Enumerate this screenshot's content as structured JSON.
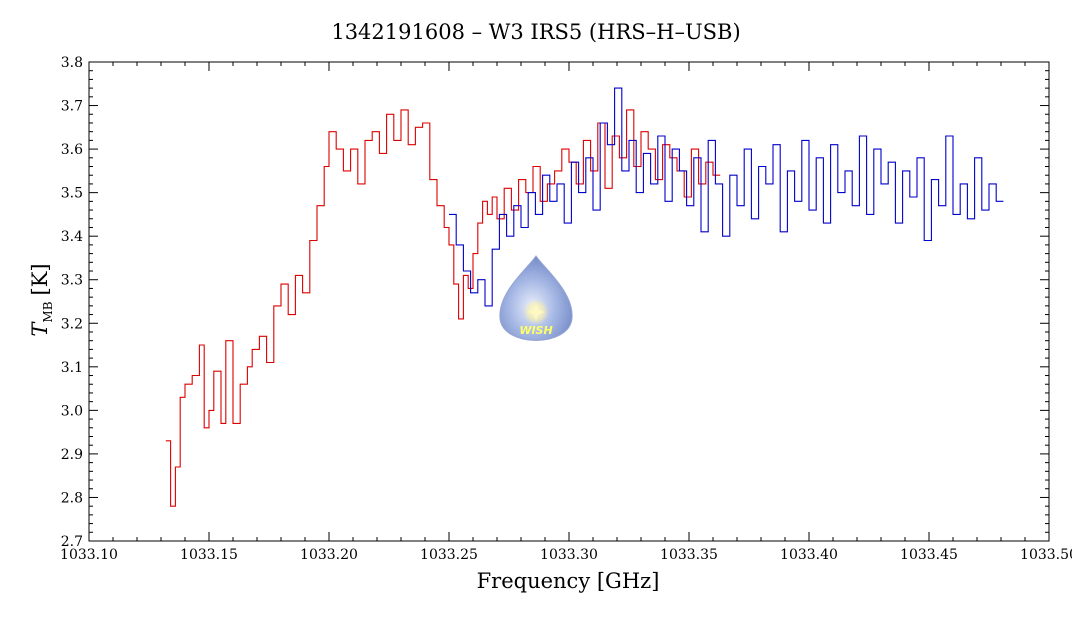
{
  "chart_data": {
    "type": "line",
    "title": "1342191608 – W3 IRS5 (HRS–H–USB)",
    "xlabel": "Frequency [GHz]",
    "ylabel_main": "T",
    "ylabel_sub": "MB",
    "ylabel_unit": "[K]",
    "xlim": [
      1033.1,
      1033.5
    ],
    "ylim": [
      2.7,
      3.8
    ],
    "x_ticks": [
      1033.1,
      1033.15,
      1033.2,
      1033.25,
      1033.3,
      1033.35,
      1033.4,
      1033.45,
      1033.5
    ],
    "x_tick_labels": [
      "1033.10",
      "1033.15",
      "1033.20",
      "1033.25",
      "1033.30",
      "1033.35",
      "1033.40",
      "1033.45",
      "1033.50"
    ],
    "y_ticks": [
      2.7,
      2.8,
      2.9,
      3.0,
      3.1,
      3.2,
      3.3,
      3.4,
      3.5,
      3.6,
      3.7,
      3.8
    ],
    "y_tick_labels": [
      "2.7",
      "2.8",
      "2.9",
      "3.0",
      "3.1",
      "3.2",
      "3.3",
      "3.4",
      "3.5",
      "3.6",
      "3.7",
      "3.8"
    ],
    "grid": false,
    "series": [
      {
        "color": "#dd0000",
        "x": [
          1033.132,
          1033.134,
          1033.136,
          1033.138,
          1033.14,
          1033.143,
          1033.146,
          1033.148,
          1033.15,
          1033.152,
          1033.155,
          1033.157,
          1033.16,
          1033.163,
          1033.166,
          1033.168,
          1033.171,
          1033.174,
          1033.177,
          1033.18,
          1033.183,
          1033.186,
          1033.189,
          1033.192,
          1033.195,
          1033.198,
          1033.2,
          1033.203,
          1033.206,
          1033.209,
          1033.212,
          1033.215,
          1033.218,
          1033.221,
          1033.224,
          1033.227,
          1033.23,
          1033.233,
          1033.236,
          1033.239,
          1033.242,
          1033.245,
          1033.248,
          1033.25,
          1033.252,
          1033.254,
          1033.256,
          1033.258,
          1033.26,
          1033.262,
          1033.264,
          1033.266,
          1033.268,
          1033.27,
          1033.273,
          1033.276,
          1033.279,
          1033.282,
          1033.285,
          1033.288,
          1033.291,
          1033.294,
          1033.297,
          1033.3,
          1033.303,
          1033.306,
          1033.309,
          1033.312,
          1033.315,
          1033.318,
          1033.321,
          1033.324,
          1033.327,
          1033.33,
          1033.333,
          1033.336,
          1033.339,
          1033.342,
          1033.345,
          1033.348,
          1033.351,
          1033.354,
          1033.357,
          1033.36
        ],
        "y": [
          2.93,
          2.78,
          2.87,
          3.03,
          3.06,
          3.08,
          3.15,
          2.96,
          3.0,
          3.09,
          2.97,
          3.16,
          2.97,
          3.06,
          3.1,
          3.14,
          3.17,
          3.11,
          3.24,
          3.29,
          3.22,
          3.31,
          3.27,
          3.39,
          3.47,
          3.56,
          3.64,
          3.6,
          3.55,
          3.6,
          3.52,
          3.62,
          3.64,
          3.59,
          3.68,
          3.62,
          3.69,
          3.61,
          3.65,
          3.66,
          3.53,
          3.47,
          3.42,
          3.38,
          3.29,
          3.21,
          3.31,
          3.28,
          3.36,
          3.43,
          3.48,
          3.45,
          3.49,
          3.44,
          3.51,
          3.46,
          3.53,
          3.5,
          3.56,
          3.48,
          3.52,
          3.55,
          3.6,
          3.57,
          3.52,
          3.62,
          3.55,
          3.66,
          3.51,
          3.63,
          3.58,
          3.69,
          3.56,
          3.64,
          3.6,
          3.53,
          3.61,
          3.58,
          3.55,
          3.49,
          3.6,
          3.52,
          3.57,
          3.54
        ]
      },
      {
        "color": "#0000cc",
        "x": [
          1033.25,
          1033.253,
          1033.256,
          1033.259,
          1033.262,
          1033.265,
          1033.268,
          1033.271,
          1033.274,
          1033.277,
          1033.28,
          1033.283,
          1033.286,
          1033.289,
          1033.292,
          1033.295,
          1033.298,
          1033.301,
          1033.304,
          1033.307,
          1033.31,
          1033.313,
          1033.316,
          1033.319,
          1033.322,
          1033.325,
          1033.328,
          1033.331,
          1033.334,
          1033.337,
          1033.34,
          1033.343,
          1033.346,
          1033.349,
          1033.352,
          1033.355,
          1033.358,
          1033.361,
          1033.364,
          1033.367,
          1033.37,
          1033.373,
          1033.376,
          1033.379,
          1033.382,
          1033.385,
          1033.388,
          1033.391,
          1033.394,
          1033.397,
          1033.4,
          1033.403,
          1033.406,
          1033.409,
          1033.412,
          1033.415,
          1033.418,
          1033.421,
          1033.424,
          1033.427,
          1033.43,
          1033.433,
          1033.436,
          1033.439,
          1033.442,
          1033.445,
          1033.448,
          1033.451,
          1033.454,
          1033.457,
          1033.46,
          1033.463,
          1033.466,
          1033.469,
          1033.472,
          1033.475,
          1033.478
        ],
        "y": [
          3.45,
          3.38,
          3.32,
          3.27,
          3.3,
          3.24,
          3.37,
          3.45,
          3.4,
          3.47,
          3.42,
          3.5,
          3.45,
          3.54,
          3.48,
          3.52,
          3.43,
          3.57,
          3.5,
          3.58,
          3.46,
          3.66,
          3.61,
          3.74,
          3.55,
          3.62,
          3.5,
          3.59,
          3.52,
          3.63,
          3.48,
          3.6,
          3.55,
          3.47,
          3.58,
          3.41,
          3.62,
          3.52,
          3.4,
          3.54,
          3.47,
          3.6,
          3.44,
          3.56,
          3.52,
          3.61,
          3.41,
          3.55,
          3.48,
          3.62,
          3.46,
          3.58,
          3.43,
          3.61,
          3.5,
          3.55,
          3.47,
          3.63,
          3.45,
          3.6,
          3.52,
          3.57,
          3.43,
          3.55,
          3.49,
          3.58,
          3.39,
          3.53,
          3.47,
          3.63,
          3.45,
          3.52,
          3.44,
          3.58,
          3.46,
          3.52,
          3.48
        ]
      }
    ],
    "annotations": [
      {
        "text": "WISH",
        "kind": "logo"
      }
    ]
  }
}
